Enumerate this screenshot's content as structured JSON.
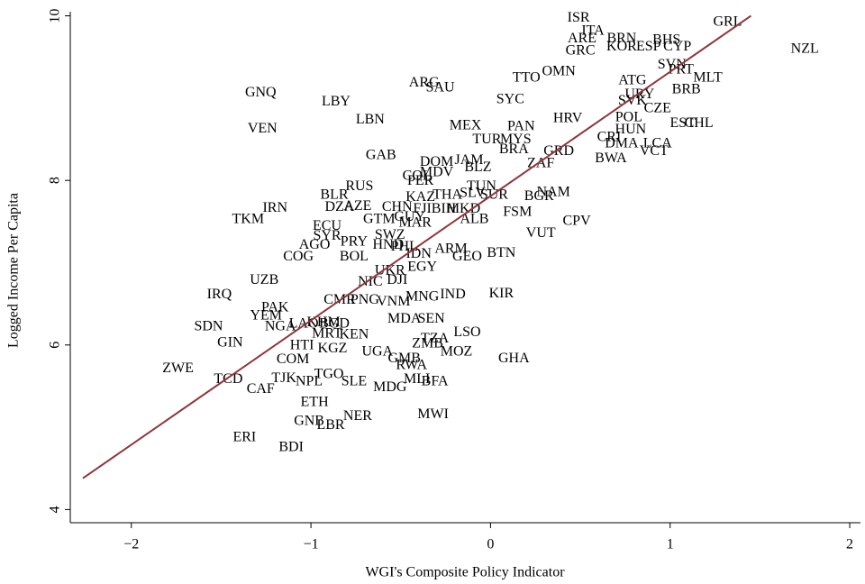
{
  "chart_data": {
    "type": "scatter",
    "x_label": "WGI's Composite Policy Indicator",
    "y_label": "Logged Income Per Capita",
    "xlim": [
      -2.34,
      2.06
    ],
    "ylim": [
      3.84,
      10.05
    ],
    "xticks": [
      {
        "value": -2,
        "label": "−2"
      },
      {
        "value": -1,
        "label": "−1"
      },
      0,
      1,
      2
    ],
    "yticks": [
      4,
      6,
      8,
      10
    ],
    "grid": false,
    "color": "#1a476f",
    "labels": [
      "ISR",
      "ITA",
      "ARE",
      "BRN",
      "BHS",
      "GRC",
      "KOR",
      "ESP",
      "CYP",
      "GRL",
      "NZL",
      "SVN",
      "PRT",
      "MLT",
      "ATG",
      "BRB",
      "URY",
      "SVK",
      "CZE",
      "POL",
      "EST",
      "CHL",
      "HUN",
      "CRI",
      "DMA",
      "LCA",
      "VCT",
      "BWA",
      "TTO",
      "OMN",
      "ARG",
      "SAU",
      "SYC",
      "GNQ",
      "LBY",
      "LBN",
      "VEN",
      "MEX",
      "PAN",
      "HRV",
      "TUR",
      "MYS",
      "BRA",
      "GRD",
      "ZAF",
      "GAB",
      "DOM",
      "JAM",
      "BLZ",
      "COL",
      "MDV",
      "PER",
      "RUS",
      "BLR",
      "TUN",
      "KAZ",
      "THA",
      "SLV",
      "SUR",
      "BGR",
      "NAM",
      "IRN",
      "DZA",
      "AZE",
      "CHN",
      "FJI",
      "BIH",
      "MKD",
      "FSM",
      "TKM",
      "ECU",
      "GTM",
      "GUY",
      "MAR",
      "ALB",
      "CPV",
      "VUT",
      "SYR",
      "SWZ",
      "AGO",
      "PRY",
      "HND",
      "PHL",
      "IDN",
      "ARM",
      "GEO",
      "BTN",
      "COG",
      "BOL",
      "UKR",
      "EGY",
      "NIC",
      "DJI",
      "UZB",
      "IRQ",
      "PAK",
      "CMR",
      "PNG",
      "VNM",
      "MNG",
      "IND",
      "KIR",
      "YEM",
      "SDN",
      "NGA",
      "LAO",
      "KHM",
      "BGD",
      "MRT",
      "KEN",
      "MDA",
      "SEN",
      "LSO",
      "TZA",
      "ZMB",
      "MOZ",
      "GIN",
      "HTI",
      "KGZ",
      "UGA",
      "GMB",
      "RWA",
      "GHA",
      "COM",
      "ZWE",
      "TCD",
      "TJK",
      "TGO",
      "NPL",
      "SLE",
      "MDG",
      "MLI",
      "BFA",
      "CAF",
      "ETH",
      "MWI",
      "GNB",
      "NER",
      "LBR",
      "ERI",
      "BDI"
    ],
    "x": [
      0.49,
      0.57,
      0.51,
      0.73,
      0.98,
      0.5,
      0.73,
      0.88,
      1.04,
      1.32,
      1.75,
      1.01,
      1.06,
      1.21,
      0.79,
      1.09,
      0.83,
      0.79,
      0.93,
      0.77,
      1.07,
      1.16,
      0.78,
      0.66,
      0.73,
      0.93,
      0.91,
      0.67,
      0.2,
      0.38,
      -0.37,
      -0.28,
      0.11,
      -1.28,
      -0.86,
      -0.67,
      -1.27,
      -0.14,
      0.17,
      0.43,
      -0.02,
      0.14,
      0.13,
      0.38,
      0.28,
      -0.61,
      -0.3,
      -0.12,
      -0.07,
      -0.41,
      -0.3,
      -0.39,
      -0.73,
      -0.87,
      -0.05,
      -0.39,
      -0.24,
      -0.1,
      0.02,
      0.27,
      0.35,
      -1.2,
      -0.84,
      -0.74,
      -0.52,
      -0.38,
      -0.26,
      -0.15,
      0.15,
      -1.35,
      -0.91,
      -0.62,
      -0.45,
      -0.42,
      -0.09,
      0.48,
      0.28,
      -0.91,
      -0.56,
      -0.98,
      -0.76,
      -0.57,
      -0.48,
      -0.4,
      -0.22,
      -0.13,
      0.06,
      -1.07,
      -0.76,
      -0.56,
      -0.38,
      -0.67,
      -0.52,
      -1.26,
      -1.51,
      -1.2,
      -0.84,
      -0.7,
      -0.54,
      -0.38,
      -0.21,
      0.06,
      -1.25,
      -1.57,
      -1.17,
      -1.04,
      -0.93,
      -0.87,
      -0.91,
      -0.76,
      -0.48,
      -0.33,
      -0.13,
      -0.31,
      -0.35,
      -0.19,
      -1.45,
      -1.05,
      -0.88,
      -0.63,
      -0.48,
      -0.44,
      0.13,
      -1.1,
      -1.74,
      -1.46,
      -1.15,
      -0.9,
      -1.01,
      -0.76,
      -0.56,
      -0.41,
      -0.31,
      -1.28,
      -0.98,
      -0.32,
      -1.01,
      -0.74,
      -0.89,
      -1.37,
      -1.11
    ],
    "values": [
      9.97,
      9.81,
      9.72,
      9.72,
      9.7,
      9.57,
      9.62,
      9.62,
      9.62,
      9.92,
      9.59,
      9.4,
      9.34,
      9.24,
      9.21,
      9.1,
      9.04,
      8.96,
      8.87,
      8.76,
      8.69,
      8.69,
      8.61,
      8.52,
      8.44,
      8.44,
      8.35,
      8.26,
      9.24,
      9.32,
      9.18,
      9.12,
      8.98,
      9.06,
      8.95,
      8.73,
      8.62,
      8.66,
      8.65,
      8.75,
      8.49,
      8.49,
      8.37,
      8.35,
      8.2,
      8.3,
      8.22,
      8.24,
      8.15,
      8.05,
      8.09,
      7.99,
      7.92,
      7.82,
      7.92,
      7.79,
      7.82,
      7.84,
      7.82,
      7.8,
      7.85,
      7.66,
      7.67,
      7.68,
      7.67,
      7.65,
      7.65,
      7.65,
      7.61,
      7.52,
      7.44,
      7.52,
      7.55,
      7.48,
      7.52,
      7.5,
      7.35,
      7.32,
      7.33,
      7.21,
      7.25,
      7.21,
      7.19,
      7.1,
      7.16,
      7.07,
      7.11,
      7.07,
      7.07,
      6.9,
      6.94,
      6.76,
      6.78,
      6.78,
      6.61,
      6.45,
      6.54,
      6.54,
      6.52,
      6.58,
      6.61,
      6.62,
      6.35,
      6.22,
      6.22,
      6.25,
      6.27,
      6.25,
      6.13,
      6.12,
      6.31,
      6.31,
      6.15,
      6.07,
      6.01,
      5.91,
      6.02,
      5.99,
      5.95,
      5.91,
      5.83,
      5.75,
      5.83,
      5.82,
      5.71,
      5.58,
      5.59,
      5.64,
      5.55,
      5.55,
      5.48,
      5.58,
      5.55,
      5.46,
      5.3,
      5.15,
      5.07,
      5.13,
      5.02,
      4.87,
      4.75
    ],
    "fit_line": {
      "x": [
        -2.27,
        1.45
      ],
      "values": [
        4.38,
        10.0
      ],
      "color": "#90353b"
    }
  }
}
